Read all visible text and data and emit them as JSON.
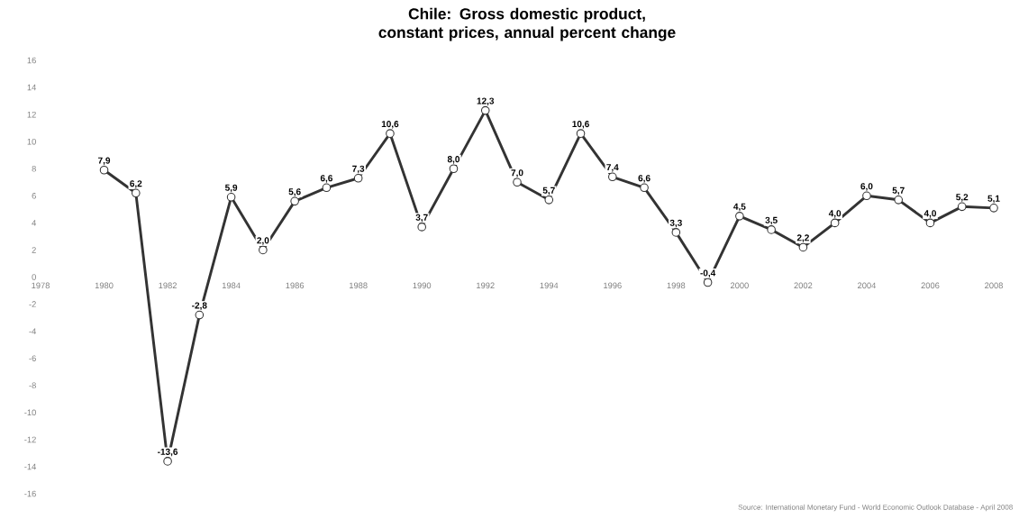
{
  "chart_data": {
    "type": "line",
    "title": "Chile: Gross domestic product, constant prices, annual percent change",
    "x": [
      1980,
      1981,
      1982,
      1983,
      1984,
      1985,
      1986,
      1987,
      1988,
      1989,
      1990,
      1991,
      1992,
      1993,
      1994,
      1995,
      1996,
      1997,
      1998,
      1999,
      2000,
      2001,
      2002,
      2003,
      2004,
      2005,
      2006,
      2007,
      2008
    ],
    "series": [
      {
        "color": "#333333",
        "values": [
          7.9,
          6.2,
          -13.6,
          -2.8,
          5.9,
          2.0,
          5.6,
          6.6,
          7.3,
          10.6,
          3.7,
          8.0,
          12.3,
          7.0,
          5.7,
          10.6,
          7.4,
          6.6,
          3.3,
          -0.4,
          4.5,
          3.5,
          2.2,
          4.0,
          6.0,
          5.7,
          4.0,
          5.2,
          5.1
        ],
        "value_labels": [
          "7,9",
          "6,2",
          "-13,6",
          "-2,8",
          "5,9",
          "2,0",
          "5,6",
          "6,6",
          "7,3",
          "10,6",
          "3,7",
          "8,0",
          "12,3",
          "7,0",
          "5,7",
          "10,6",
          "7,4",
          "6,6",
          "3,3",
          "-0,4",
          "4,5",
          "3,5",
          "2,2",
          "4,0",
          "6,0",
          "5,7",
          "4,0",
          "5,2",
          "5,1"
        ]
      }
    ],
    "xlim": [
      1978,
      2008
    ],
    "xticks": [
      1978,
      1980,
      1982,
      1984,
      1986,
      1988,
      1990,
      1992,
      1994,
      1996,
      1998,
      2000,
      2002,
      2004,
      2006,
      2008
    ],
    "ylim": [
      -16,
      16
    ],
    "yticks": [
      -16,
      -14,
      -12,
      -10,
      -8,
      -6,
      -4,
      -2,
      0,
      2,
      4,
      6,
      8,
      10,
      12,
      14,
      16
    ],
    "marker": "circle",
    "line_style": "solid",
    "grid": false,
    "annotations": [
      "Source: International Monetary Fund - World Economic Outlook Database - April 2008"
    ]
  }
}
